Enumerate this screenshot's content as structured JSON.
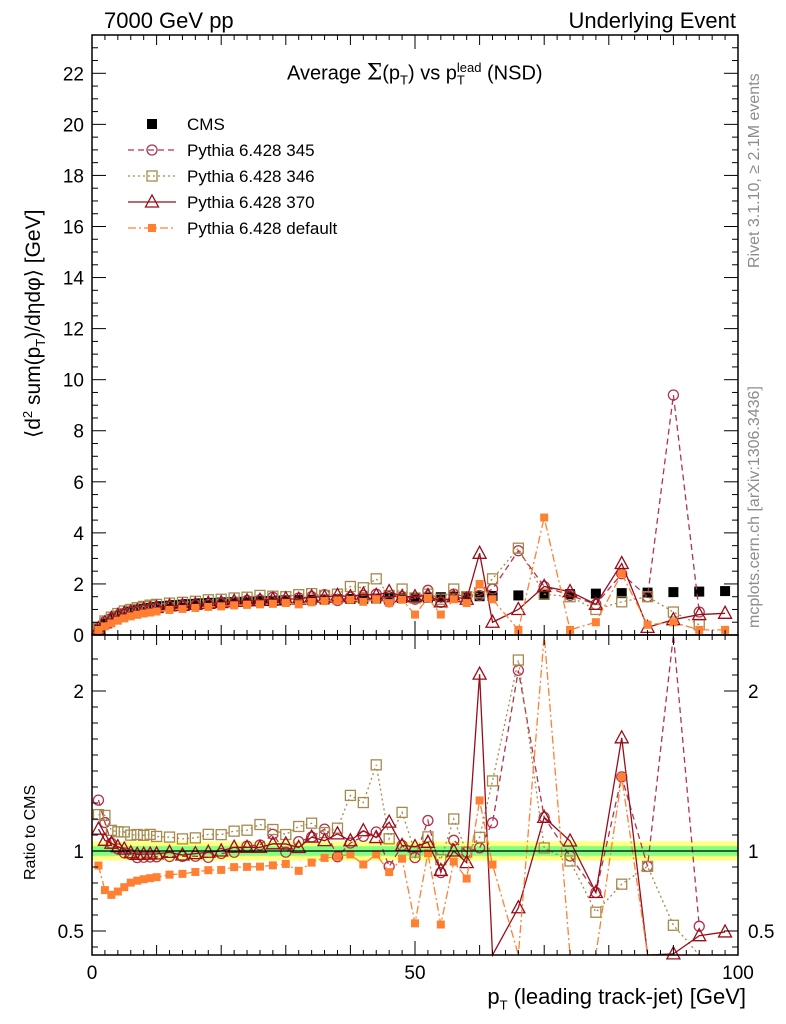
{
  "header": {
    "left": "7000 GeV pp",
    "right": "Underlying Event"
  },
  "side_labels": {
    "rivet": "Rivet 3.1.10, ≥ 2.1M events",
    "mcplots": "mcplots.cern.ch [arXiv:1306.3436]"
  },
  "chart_data": {
    "type": "line",
    "title": {
      "prefix": "Average ",
      "sigma": "Σ",
      "mid1": "(p",
      "sub1": "T",
      "mid2": ") vs p",
      "sub2": "T",
      "sup2": "lead",
      "suffix": " (NSD)"
    },
    "ylabel": {
      "a": "⟨d",
      "sup": "2",
      "b": " sum(p",
      "sub": "T",
      "c": ")/dηdφ⟩ [GeV]"
    },
    "xlabel": {
      "a": "p",
      "sub": "T",
      "b": " (leading track-jet) [GeV]"
    },
    "ratio_ylabel": "Ratio to CMS",
    "xlim": [
      0,
      100
    ],
    "ylim": [
      0,
      23.5
    ],
    "ratio_ylim": [
      0.35,
      2.35
    ],
    "xticks": [
      "0",
      "50",
      "100"
    ],
    "yticks": [
      "0",
      "2",
      "4",
      "6",
      "8",
      "10",
      "12",
      "14",
      "16",
      "18",
      "20",
      "22"
    ],
    "ratio_yticks": [
      "0.5",
      "1",
      "2"
    ],
    "legend_position": "top-left",
    "colors": {
      "cms": "#000000",
      "p345": "#b2334d",
      "p346": "#a68a4d",
      "p370": "#990d1a",
      "pdef": "#ff8033",
      "band_inner": "#80ff80",
      "band_outer": "#ffff80"
    },
    "series": [
      {
        "name": "CMS",
        "key": "cms",
        "marker": "filled-square",
        "x": [
          1,
          2,
          3,
          4,
          5,
          6,
          7,
          8,
          9,
          10,
          11,
          12,
          13,
          14,
          15,
          16,
          17,
          18,
          19,
          20,
          21,
          22,
          23,
          24,
          25,
          26,
          27,
          28,
          29,
          30,
          32,
          34,
          36,
          38,
          40,
          42,
          44,
          46,
          48,
          50,
          52,
          54,
          56,
          58,
          60,
          62,
          66,
          70,
          74,
          78,
          82,
          86,
          90,
          94,
          98
        ],
        "y": [
          0.22,
          0.45,
          0.62,
          0.75,
          0.84,
          0.91,
          0.97,
          1.02,
          1.06,
          1.1,
          1.13,
          1.15,
          1.17,
          1.19,
          1.21,
          1.22,
          1.24,
          1.25,
          1.26,
          1.27,
          1.28,
          1.29,
          1.3,
          1.31,
          1.32,
          1.33,
          1.33,
          1.34,
          1.35,
          1.36,
          1.37,
          1.38,
          1.39,
          1.4,
          1.41,
          1.42,
          1.43,
          1.44,
          1.45,
          1.46,
          1.47,
          1.48,
          1.5,
          1.51,
          1.52,
          1.53,
          1.55,
          1.57,
          1.6,
          1.62,
          1.64,
          1.66,
          1.68,
          1.7,
          1.72
        ]
      },
      {
        "name": "Pythia 6.428 345",
        "key": "p345",
        "marker": "open-circle",
        "dash": "6,4",
        "x": [
          1,
          2,
          3,
          4,
          5,
          6,
          7,
          8,
          9,
          10,
          12,
          14,
          16,
          18,
          20,
          22,
          24,
          26,
          28,
          30,
          32,
          34,
          36,
          38,
          40,
          42,
          44,
          46,
          48,
          50,
          52,
          54,
          56,
          58,
          60,
          62,
          66,
          70,
          74,
          78,
          82,
          86,
          90,
          94
        ],
        "y": [
          0.29,
          0.53,
          0.65,
          0.76,
          0.83,
          0.89,
          0.93,
          0.98,
          1.02,
          1.06,
          1.11,
          1.15,
          1.18,
          1.2,
          1.25,
          1.28,
          1.35,
          1.38,
          1.48,
          1.35,
          1.45,
          1.5,
          1.58,
          1.35,
          1.48,
          1.55,
          1.6,
          1.3,
          1.5,
          1.4,
          1.75,
          1.28,
          1.6,
          1.5,
          1.55,
          1.8,
          3.3,
          1.9,
          1.55,
          1.2,
          2.4,
          1.5,
          9.4,
          0.9
        ]
      },
      {
        "name": "Pythia 6.428 346",
        "key": "p346",
        "marker": "open-square",
        "dash": "2,3",
        "x": [
          1,
          2,
          3,
          4,
          5,
          6,
          7,
          8,
          9,
          10,
          12,
          14,
          16,
          18,
          20,
          22,
          24,
          26,
          28,
          30,
          32,
          34,
          36,
          38,
          40,
          42,
          44,
          46,
          48,
          50,
          52,
          54,
          56,
          58,
          60,
          62,
          66,
          70,
          74,
          78,
          82,
          86,
          90,
          94
        ],
        "y": [
          0.27,
          0.55,
          0.7,
          0.84,
          0.94,
          1.0,
          1.07,
          1.12,
          1.17,
          1.2,
          1.25,
          1.28,
          1.32,
          1.38,
          1.4,
          1.45,
          1.48,
          1.55,
          1.52,
          1.5,
          1.58,
          1.62,
          1.55,
          1.6,
          1.9,
          1.85,
          2.2,
          1.55,
          1.8,
          1.45,
          1.6,
          1.4,
          1.8,
          1.5,
          1.65,
          2.2,
          3.4,
          1.6,
          1.5,
          1.0,
          1.3,
          1.5,
          0.9,
          0.4
        ]
      },
      {
        "name": "Pythia 6.428 370",
        "key": "p370",
        "marker": "open-triangle",
        "dash": "",
        "x": [
          1,
          2,
          3,
          4,
          5,
          6,
          7,
          8,
          9,
          10,
          12,
          14,
          16,
          18,
          20,
          22,
          24,
          26,
          28,
          30,
          32,
          34,
          36,
          38,
          40,
          42,
          44,
          46,
          48,
          50,
          52,
          54,
          56,
          58,
          60,
          62,
          66,
          70,
          74,
          78,
          82,
          86,
          90,
          94,
          98
        ],
        "y": [
          0.25,
          0.48,
          0.65,
          0.77,
          0.85,
          0.9,
          0.95,
          1.0,
          1.04,
          1.08,
          1.14,
          1.16,
          1.2,
          1.24,
          1.27,
          1.32,
          1.34,
          1.36,
          1.4,
          1.42,
          1.4,
          1.5,
          1.48,
          1.55,
          1.5,
          1.6,
          1.55,
          1.7,
          1.5,
          1.5,
          1.55,
          1.3,
          1.5,
          1.4,
          3.2,
          0.5,
          1.0,
          1.9,
          1.7,
          1.2,
          2.8,
          0.3,
          0.6,
          0.8,
          0.85
        ]
      },
      {
        "name": "Pythia 6.428 default",
        "key": "pdef",
        "marker": "filled-square-small",
        "dash": "8,3,2,3",
        "x": [
          1,
          2,
          3,
          4,
          5,
          6,
          7,
          8,
          9,
          10,
          12,
          14,
          16,
          18,
          20,
          22,
          24,
          26,
          28,
          30,
          32,
          34,
          36,
          38,
          40,
          42,
          44,
          46,
          48,
          50,
          52,
          54,
          56,
          58,
          60,
          62,
          66,
          70,
          74,
          78,
          82,
          86,
          90,
          94,
          98
        ],
        "y": [
          0.2,
          0.34,
          0.45,
          0.56,
          0.65,
          0.73,
          0.79,
          0.84,
          0.88,
          0.92,
          0.98,
          1.02,
          1.06,
          1.1,
          1.12,
          1.16,
          1.18,
          1.2,
          1.22,
          1.25,
          1.2,
          1.28,
          1.33,
          1.35,
          1.38,
          1.3,
          1.4,
          1.25,
          1.38,
          0.8,
          1.45,
          0.8,
          1.4,
          1.25,
          2.0,
          1.4,
          0.2,
          4.6,
          0.2,
          0.5,
          2.4,
          0.4,
          0.5,
          0.2,
          0.2
        ]
      }
    ]
  }
}
